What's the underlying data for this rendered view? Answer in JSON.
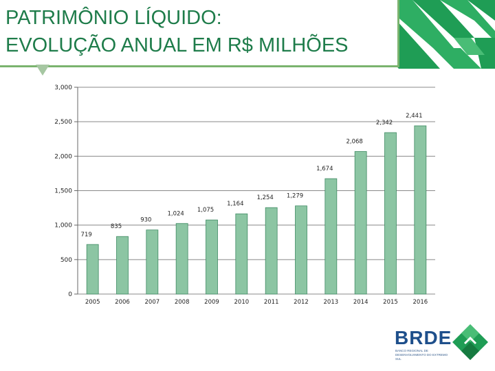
{
  "header": {
    "title_line1": "PATRIMÔNIO LÍQUIDO:",
    "title_line2": "EVOLUÇÃO ANUAL EM R$ MILHÕES"
  },
  "colors": {
    "bar_fill": "#8cc5a3",
    "bar_stroke": "#3e8a63",
    "title": "#1e7c4a",
    "brand_green": "#1f9d55",
    "brand_blue": "#1e4f8b"
  },
  "chart_data": {
    "type": "bar",
    "title": "",
    "xlabel": "",
    "ylabel": "",
    "categories": [
      "2005",
      "2006",
      "2007",
      "2008",
      "2009",
      "2010",
      "2011",
      "2012",
      "2013",
      "2014",
      "2015",
      "2016"
    ],
    "values": [
      719,
      835,
      930,
      1024,
      1075,
      1164,
      1254,
      1279,
      1674,
      2068,
      2342,
      2441
    ],
    "data_labels": [
      "719",
      "835",
      "930",
      "1,024",
      "1,075",
      "1,164",
      "1,254",
      "1,279",
      "1,674",
      "2,068",
      "2,342",
      "2,441"
    ],
    "ylim": [
      0,
      3000
    ],
    "yticks": [
      0,
      500,
      1000,
      1500,
      2000,
      2500,
      3000
    ],
    "ytick_labels": [
      "0",
      "500",
      "1,000",
      "1,500",
      "2,000",
      "2,500",
      "3,000"
    ],
    "grid": true,
    "legend": "none"
  },
  "logo": {
    "name": "BRDE",
    "subtitle": "BANCO REGIONAL DE DESENVOLVIMENTO DO EXTREMO SUL"
  }
}
